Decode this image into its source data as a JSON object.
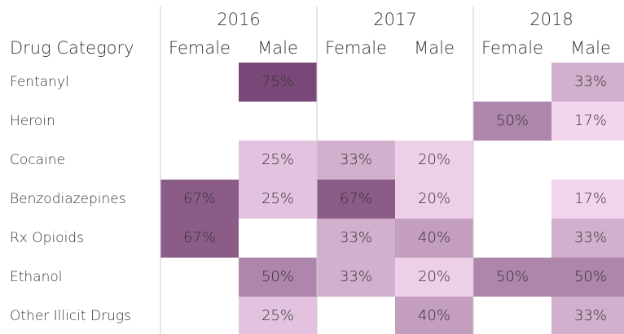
{
  "chart_data": {
    "type": "heatmap",
    "row_header": "Drug Category",
    "categories": [
      "Fentanyl",
      "Heroin",
      "Cocaine",
      "Benzodiazepines",
      "Rx Opioids",
      "Ethanol",
      "Other Illicit Drugs"
    ],
    "color_range": [
      "#f3d6ee",
      "#7a4878"
    ],
    "groups": [
      {
        "name": "2016",
        "series": [
          {
            "name": "Female",
            "values": [
              null,
              null,
              null,
              67,
              67,
              null,
              null
            ],
            "value_labels": [
              null,
              null,
              null,
              "67%",
              "67%",
              null,
              null
            ]
          },
          {
            "name": "Male",
            "values": [
              75,
              null,
              25,
              25,
              null,
              50,
              25
            ],
            "value_labels": [
              "75%",
              null,
              "25%",
              "25%",
              null,
              "50%",
              "25%"
            ]
          }
        ]
      },
      {
        "name": "2017",
        "series": [
          {
            "name": "Female",
            "values": [
              null,
              null,
              33,
              67,
              33,
              33,
              null
            ],
            "value_labels": [
              null,
              null,
              "33%",
              "67%",
              "33%",
              "33%",
              null
            ]
          },
          {
            "name": "Male",
            "values": [
              null,
              null,
              20,
              20,
              40,
              20,
              40
            ],
            "value_labels": [
              null,
              null,
              "20%",
              "20%",
              "40%",
              "20%",
              "40%"
            ]
          }
        ]
      },
      {
        "name": "2018",
        "series": [
          {
            "name": "Female",
            "values": [
              null,
              50,
              null,
              null,
              null,
              50,
              null
            ],
            "value_labels": [
              null,
              "50%",
              null,
              null,
              null,
              "50%",
              null
            ]
          },
          {
            "name": "Male",
            "values": [
              33,
              17,
              null,
              17,
              33,
              50,
              33
            ],
            "value_labels": [
              "33%",
              "17%",
              null,
              "17%",
              "33%",
              "50%",
              "33%"
            ]
          }
        ]
      }
    ]
  }
}
